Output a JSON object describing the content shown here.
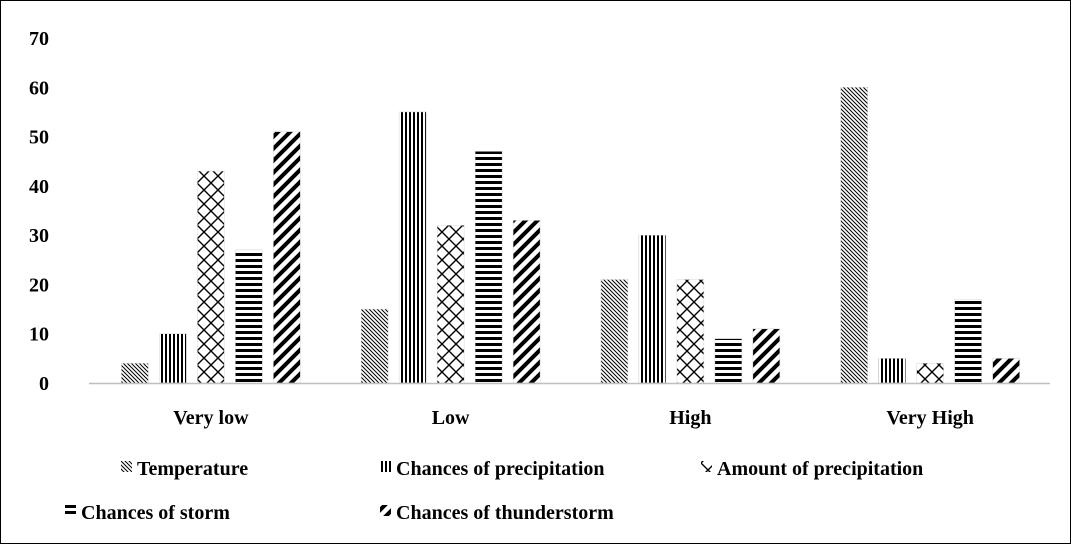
{
  "chart_data": {
    "type": "bar",
    "categories": [
      "Very low",
      "Low",
      "High",
      "Very High"
    ],
    "series": [
      {
        "name": "Temperature",
        "values": [
          4,
          15,
          21,
          60
        ],
        "pattern": "diagonal-dense"
      },
      {
        "name": "Chances of precipitation",
        "values": [
          10,
          55,
          30,
          5
        ],
        "pattern": "vertical"
      },
      {
        "name": "Amount of precipitation",
        "values": [
          43,
          32,
          21,
          4
        ],
        "pattern": "crosshatch"
      },
      {
        "name": "Chances of storm",
        "values": [
          27,
          47,
          9,
          17
        ],
        "pattern": "horizontal"
      },
      {
        "name": "Chances of thunderstorm",
        "values": [
          51,
          33,
          11,
          5
        ],
        "pattern": "diagonal-wide"
      }
    ],
    "yticks": [
      "0",
      "10",
      "20",
      "30",
      "40",
      "50",
      "60",
      "70"
    ],
    "ylim": [
      0,
      70
    ],
    "grid": false,
    "legend_position": "bottom",
    "colors": {
      "ink": "#000000",
      "axis": "#bfbfbf",
      "background": "#ffffff"
    }
  }
}
